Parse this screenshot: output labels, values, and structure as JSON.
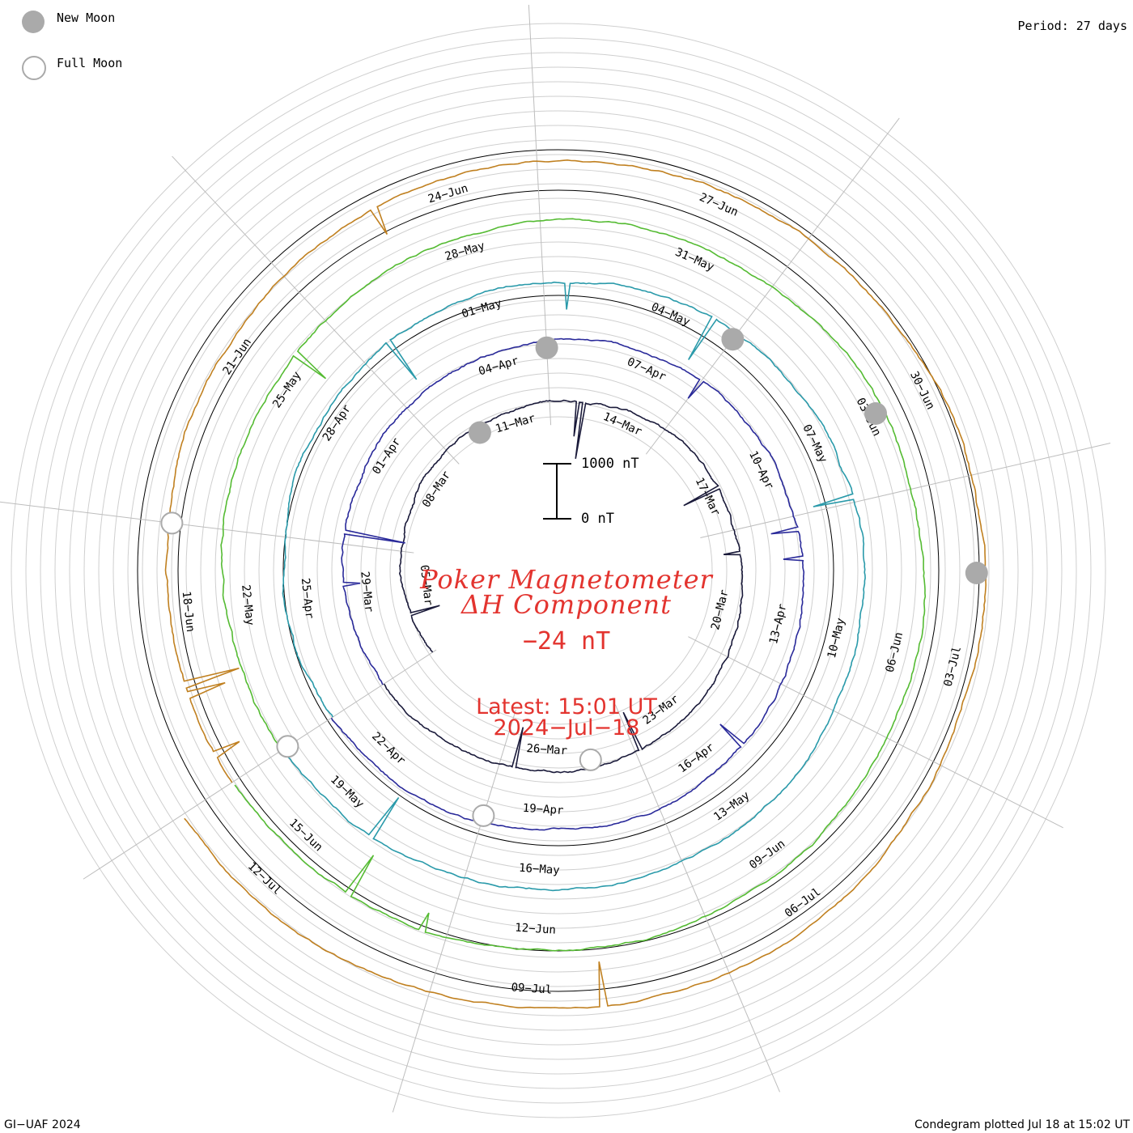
{
  "legend": {
    "new_moon_label": "New Moon",
    "full_moon_label": "Full Moon",
    "new_moon_icon": "filled-gray-circle",
    "full_moon_icon": "hollow-gray-circle",
    "moon_color": "#aaaaaa"
  },
  "header": {
    "period_text": "Period: 27 days"
  },
  "center": {
    "title_line1": "Poker Magnetometer",
    "title_line2": "ΔH Component",
    "current_value": "−24 nT",
    "latest_time": "Latest: 15:01 UT",
    "latest_date": "2024−Jul−18",
    "text_color": "#e3342f"
  },
  "scale_bar": {
    "top_label": "1000 nT",
    "bottom_label": "0 nT"
  },
  "footer": {
    "credit_left": "GI−UAF 2024",
    "credit_right": "Condegram plotted Jul 18 at 15:02 UT"
  },
  "chart_data": {
    "type": "line",
    "subtype": "spiral condegram",
    "period_days": 27,
    "start_date": "2024-03-03",
    "end_date": "2024-07-18",
    "value_scale_nT": [
      0,
      1000
    ],
    "series": [
      {
        "color": "#1a1a3a",
        "date_labels": [
          "05−Mar",
          "08−Mar",
          "11−Mar",
          "14−Mar",
          "17−Mar",
          "20−Mar",
          "23−Mar",
          "26−Mar"
        ]
      },
      {
        "color": "#2a2a9a",
        "date_labels": [
          "29−Mar",
          "01−Apr",
          "04−Apr",
          "07−Apr",
          "10−Apr",
          "13−Apr",
          "16−Apr",
          "19−Apr",
          "22−Apr"
        ]
      },
      {
        "color": "#2a9aaa",
        "date_labels": [
          "25−Apr",
          "28−Apr",
          "01−May",
          "04−May",
          "07−May",
          "10−May",
          "13−May",
          "16−May",
          "19−May"
        ]
      },
      {
        "color": "#55bb33",
        "date_labels": [
          "22−May",
          "25−May",
          "28−May",
          "31−May",
          "03−Jun",
          "06−Jun",
          "09−Jun",
          "12−Jun",
          "15−Jun"
        ]
      },
      {
        "color": "#c08020",
        "date_labels": [
          "18−Jun",
          "21−Jun",
          "24−Jun",
          "27−Jun",
          "30−Jun",
          "03−Jul",
          "06−Jul",
          "09−Jul",
          "12−Jul"
        ]
      }
    ],
    "new_moons": [
      "2024-03-10",
      "2024-04-08",
      "2024-05-08",
      "2024-06-06",
      "2024-07-05"
    ],
    "full_moons": [
      "2024-03-25",
      "2024-04-23",
      "2024-05-23",
      "2024-06-22"
    ],
    "grid": true
  }
}
